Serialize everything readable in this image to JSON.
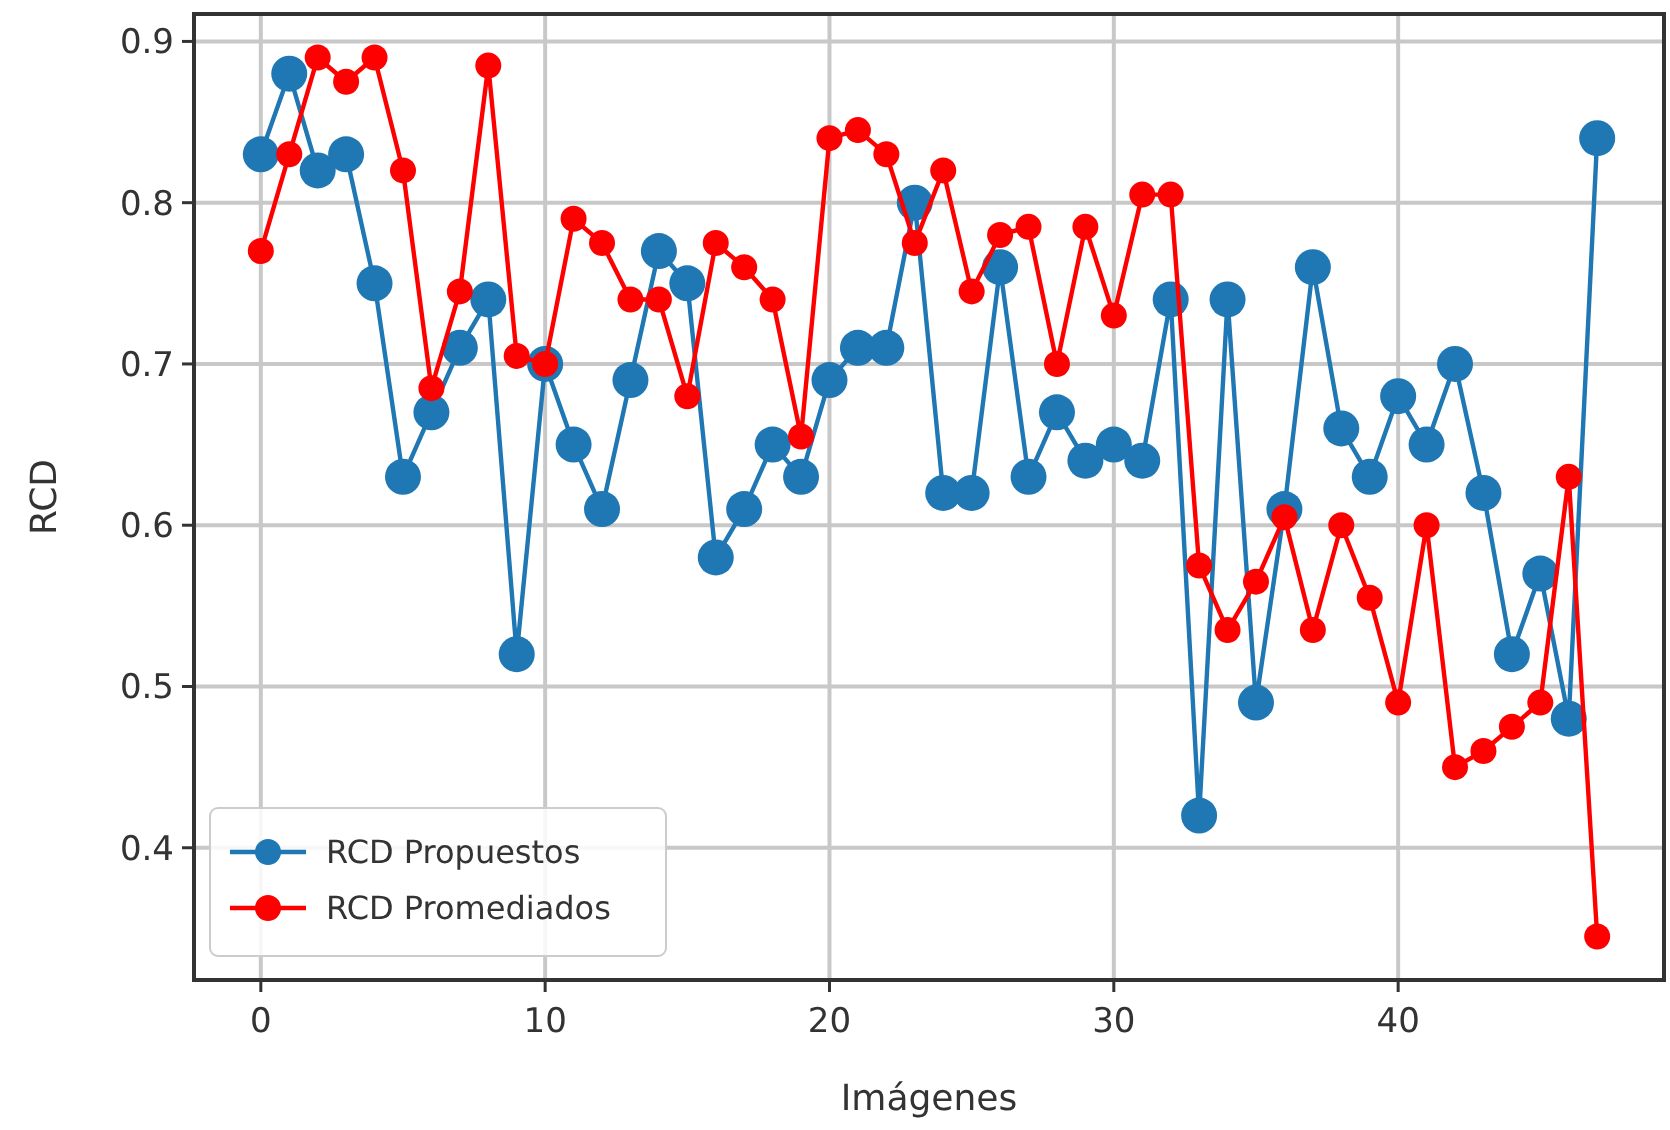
{
  "chart_data": {
    "type": "line",
    "xlabel": "Imágenes",
    "ylabel": "RCD",
    "x": [
      0,
      1,
      2,
      3,
      4,
      5,
      6,
      7,
      8,
      9,
      10,
      11,
      12,
      13,
      14,
      15,
      16,
      17,
      18,
      19,
      20,
      21,
      22,
      23,
      24,
      25,
      26,
      27,
      28,
      29,
      30,
      31,
      32,
      33,
      34,
      35,
      36,
      37,
      38,
      39,
      40,
      41,
      42,
      43,
      44,
      45,
      46,
      47
    ],
    "series": [
      {
        "name": "RCD Propuestos",
        "color": "#1f77b4",
        "values": [
          0.83,
          0.88,
          0.82,
          0.83,
          0.75,
          0.63,
          0.67,
          0.71,
          0.74,
          0.52,
          0.7,
          0.65,
          0.61,
          0.69,
          0.77,
          0.75,
          0.58,
          0.61,
          0.65,
          0.63,
          0.69,
          0.71,
          0.71,
          0.8,
          0.62,
          0.62,
          0.76,
          0.63,
          0.67,
          0.64,
          0.65,
          0.64,
          0.74,
          0.42,
          0.74,
          0.49,
          0.61,
          0.76,
          0.66,
          0.63,
          0.68,
          0.65,
          0.7,
          0.62,
          0.52,
          0.57,
          0.48,
          0.84
        ]
      },
      {
        "name": "RCD Promediados",
        "color": "#ff0000",
        "values": [
          0.77,
          0.83,
          0.89,
          0.875,
          0.89,
          0.82,
          0.685,
          0.745,
          0.885,
          0.705,
          0.7,
          0.79,
          0.775,
          0.74,
          0.74,
          0.68,
          0.775,
          0.76,
          0.74,
          0.655,
          0.84,
          0.845,
          0.83,
          0.775,
          0.82,
          0.745,
          0.78,
          0.785,
          0.7,
          0.785,
          0.73,
          0.805,
          0.805,
          0.575,
          0.535,
          0.565,
          0.605,
          0.535,
          0.6,
          0.555,
          0.49,
          0.6,
          0.45,
          0.46,
          0.475,
          0.49,
          0.63,
          0.345
        ]
      }
    ],
    "xlim": [
      -2.35,
      49.35
    ],
    "xticks": [
      0,
      10,
      20,
      30,
      40
    ],
    "ylim": [
      0.318,
      0.917
    ],
    "yticks": [
      0.4,
      0.5,
      0.6,
      0.7,
      0.8,
      0.9
    ],
    "grid": true,
    "legend": "bottom left",
    "marker": "circle",
    "line_style": "solid"
  }
}
